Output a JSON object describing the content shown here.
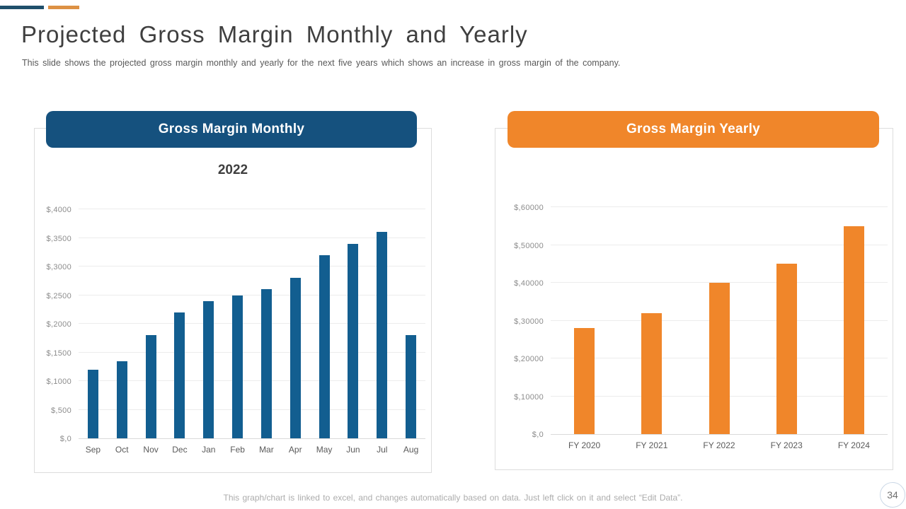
{
  "slide": {
    "title": "Projected Gross Margin Monthly and Yearly",
    "subtitle": "This slide shows the projected gross margin monthly and yearly for the next five years which shows an increase in gross margin of the company.",
    "footer_note": "This graph/chart is linked to excel, and changes automatically based on data. Just left click on it and select “Edit Data”.",
    "page_number": "34"
  },
  "colors": {
    "accent_blue": "#1F4F6B",
    "accent_orange": "#DD9144",
    "monthly_header_bg": "#15517E",
    "monthly_bar": "#125E90",
    "yearly_header_bg": "#F0862A",
    "yearly_bar": "#F0862A",
    "gridline": "#ECECEC"
  },
  "chart_data": [
    {
      "type": "bar",
      "title": "Gross Margin Monthly",
      "subtitle": "2022",
      "categories": [
        "Sep",
        "Oct",
        "Nov",
        "Dec",
        "Jan",
        "Feb",
        "Mar",
        "Apr",
        "May",
        "Jun",
        "Jul",
        "Aug"
      ],
      "values": [
        1200,
        1350,
        1800,
        2200,
        2400,
        2500,
        2600,
        2800,
        3200,
        3400,
        3600,
        1800
      ],
      "ylim": [
        0,
        4000
      ],
      "ytick_values": [
        0,
        500,
        1000,
        1500,
        2000,
        2500,
        3000,
        3500,
        4000
      ],
      "ytick_labels": [
        "$,0",
        "$,500",
        "$,1000",
        "$,1500",
        "$,2000",
        "$,2500",
        "$,3000",
        "$,3500",
        "$,4000"
      ],
      "bar_color": "#125E90",
      "header_color": "#15517E",
      "grid": "horizontal",
      "legend": "none"
    },
    {
      "type": "bar",
      "title": "Gross Margin Yearly",
      "subtitle": "",
      "categories": [
        "FY 2020",
        "FY 2021",
        "FY 2022",
        "FY 2023",
        "FY 2024"
      ],
      "values": [
        28000,
        32000,
        40000,
        45000,
        55000
      ],
      "ylim": [
        0,
        60000
      ],
      "ytick_values": [
        0,
        10000,
        20000,
        30000,
        40000,
        50000,
        60000
      ],
      "ytick_labels": [
        "$,0",
        "$,10000",
        "$,20000",
        "$,30000",
        "$,40000",
        "$,50000",
        "$,60000"
      ],
      "bar_color": "#F0862A",
      "header_color": "#F0862A",
      "grid": "horizontal",
      "legend": "none"
    }
  ]
}
